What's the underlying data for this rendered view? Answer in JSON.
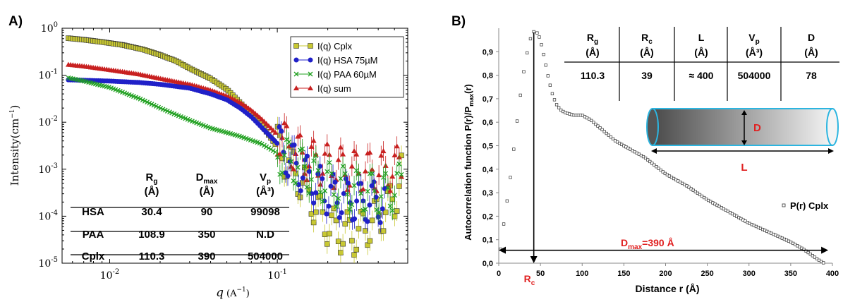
{
  "chart_data": [
    {
      "panel_label": "A)",
      "type": "scatter",
      "xscale": "log",
      "yscale": "log",
      "xlim": [
        0.0052,
        0.6
      ],
      "ylim": [
        1e-05,
        1
      ],
      "xlabel_prefix": "q",
      "xlabel_unit": "(A",
      "xlabel_exp": "−1",
      "xlabel_close": ")",
      "ylabel_main": "Intensity(cm",
      "ylabel_exp": "−1",
      "ylabel_close": ")",
      "x_ticks": [
        {
          "value": 0.01,
          "base": "10",
          "exp": "-2"
        },
        {
          "value": 0.1,
          "base": "10",
          "exp": "-1"
        }
      ],
      "y_ticks": [
        {
          "value": 1,
          "base": "10",
          "exp": "0"
        },
        {
          "value": 0.1,
          "base": "10",
          "exp": "-1"
        },
        {
          "value": 0.01,
          "base": "10",
          "exp": "-2"
        },
        {
          "value": 0.001,
          "base": "10",
          "exp": "-3"
        },
        {
          "value": 0.0001,
          "base": "10",
          "exp": "-4"
        },
        {
          "value": 1e-05,
          "base": "10",
          "exp": "-5"
        }
      ],
      "legend_position": "top-right",
      "series": [
        {
          "name": "I(q) Cplx",
          "color": "#c8c832",
          "marker": "square",
          "points": [
            [
              0.0055,
              0.62
            ],
            [
              0.007,
              0.57
            ],
            [
              0.009,
              0.51
            ],
            [
              0.012,
              0.44
            ],
            [
              0.016,
              0.35
            ],
            [
              0.02,
              0.27
            ],
            [
              0.025,
              0.2
            ],
            [
              0.03,
              0.14
            ],
            [
              0.04,
              0.085
            ],
            [
              0.05,
              0.05
            ],
            [
              0.06,
              0.026
            ],
            [
              0.07,
              0.015
            ],
            [
              0.08,
              0.009
            ],
            [
              0.1,
              0.003
            ],
            [
              0.12,
              0.0012
            ],
            [
              0.15,
              0.0004
            ],
            [
              0.18,
              0.0001
            ],
            [
              0.22,
              5e-05
            ],
            [
              0.3,
              4e-05
            ],
            [
              0.4,
              0.0001
            ],
            [
              0.5,
              0.0002
            ],
            [
              0.55,
              0.001
            ]
          ]
        },
        {
          "name": "I(q) HSA 75µM",
          "color": "#2020c8",
          "marker": "circle",
          "points": [
            [
              0.0055,
              0.08
            ],
            [
              0.007,
              0.078
            ],
            [
              0.01,
              0.075
            ],
            [
              0.015,
              0.07
            ],
            [
              0.02,
              0.064
            ],
            [
              0.03,
              0.053
            ],
            [
              0.04,
              0.04
            ],
            [
              0.05,
              0.03
            ],
            [
              0.06,
              0.02
            ],
            [
              0.07,
              0.013
            ],
            [
              0.08,
              0.008
            ],
            [
              0.1,
              0.0035
            ],
            [
              0.12,
              0.0015
            ],
            [
              0.15,
              0.0007
            ],
            [
              0.2,
              0.0003
            ],
            [
              0.3,
              0.0002
            ],
            [
              0.45,
              0.0002
            ]
          ]
        },
        {
          "name": "I(q) PAA 60µM",
          "color": "#20a020",
          "marker": "x",
          "points": [
            [
              0.0055,
              0.09
            ],
            [
              0.007,
              0.075
            ],
            [
              0.01,
              0.055
            ],
            [
              0.015,
              0.032
            ],
            [
              0.02,
              0.02
            ],
            [
              0.03,
              0.011
            ],
            [
              0.04,
              0.0075
            ],
            [
              0.05,
              0.006
            ],
            [
              0.06,
              0.005
            ],
            [
              0.08,
              0.0035
            ],
            [
              0.1,
              0.0022
            ],
            [
              0.12,
              0.0015
            ],
            [
              0.15,
              0.0009
            ],
            [
              0.2,
              0.0005
            ],
            [
              0.3,
              0.00035
            ],
            [
              0.45,
              0.0003
            ],
            [
              0.55,
              0.0005
            ]
          ]
        },
        {
          "name": "I(q) sum",
          "color": "#c82020",
          "marker": "triangle",
          "points": [
            [
              0.0055,
              0.17
            ],
            [
              0.007,
              0.155
            ],
            [
              0.01,
              0.13
            ],
            [
              0.015,
              0.105
            ],
            [
              0.02,
              0.085
            ],
            [
              0.03,
              0.064
            ],
            [
              0.04,
              0.048
            ],
            [
              0.05,
              0.036
            ],
            [
              0.06,
              0.026
            ],
            [
              0.07,
              0.018
            ],
            [
              0.08,
              0.012
            ],
            [
              0.1,
              0.0055
            ],
            [
              0.12,
              0.0028
            ],
            [
              0.15,
              0.0016
            ],
            [
              0.2,
              0.0012
            ],
            [
              0.3,
              0.0009
            ],
            [
              0.45,
              0.0009
            ],
            [
              0.55,
              0.0012
            ]
          ]
        }
      ],
      "table": {
        "headers": [
          {
            "main": "R",
            "sub": "g",
            "sup": "",
            "unit": "(Å)"
          },
          {
            "main": "D",
            "sub": "max",
            "sup": "",
            "unit": "(Å)"
          },
          {
            "main": "V",
            "sub": "p",
            "sup": "",
            "unit": "(Å³)"
          }
        ],
        "rows": [
          {
            "label": "HSA",
            "values": [
              "30.4",
              "90",
              "99098"
            ]
          },
          {
            "label": "PAA",
            "values": [
              "108.9",
              "350",
              "N.D"
            ]
          },
          {
            "label": "Cplx",
            "values": [
              "110.3",
              "390",
              "504000"
            ]
          }
        ]
      }
    },
    {
      "panel_label": "B)",
      "type": "scatter",
      "xlim": [
        0,
        400
      ],
      "ylim": [
        0,
        1.0
      ],
      "x_ticks": [
        "0",
        "50",
        "100",
        "150",
        "200",
        "250",
        "300",
        "350",
        "400"
      ],
      "y_ticks": [
        "0,0",
        "0,1",
        "0,2",
        "0,3",
        "0,4",
        "0,5",
        "0,6",
        "0,7",
        "0,8",
        "0,9"
      ],
      "xlabel": "Distance r (Å)",
      "ylabel": "Autocorrelation function P(r)/P",
      "ylabel_sub": "max",
      "ylabel_tail": "(r)",
      "legend": "P(r) Cplx",
      "legend_position": "right",
      "series": [
        {
          "name": "P(r) Cplx",
          "marker": "open-square",
          "points": [
            [
              2,
              0.06
            ],
            [
              5,
              0.14
            ],
            [
              8,
              0.22
            ],
            [
              12,
              0.31
            ],
            [
              16,
              0.42
            ],
            [
              20,
              0.55
            ],
            [
              24,
              0.66
            ],
            [
              28,
              0.77
            ],
            [
              32,
              0.86
            ],
            [
              36,
              0.93
            ],
            [
              40,
              0.98
            ],
            [
              44,
              0.99
            ],
            [
              48,
              0.97
            ],
            [
              52,
              0.92
            ],
            [
              56,
              0.85
            ],
            [
              60,
              0.78
            ],
            [
              65,
              0.71
            ],
            [
              70,
              0.67
            ],
            [
              75,
              0.65
            ],
            [
              80,
              0.64
            ],
            [
              90,
              0.63
            ],
            [
              100,
              0.63
            ],
            [
              110,
              0.61
            ],
            [
              120,
              0.58
            ],
            [
              130,
              0.55
            ],
            [
              140,
              0.52
            ],
            [
              150,
              0.5
            ],
            [
              175,
              0.45
            ],
            [
              200,
              0.38
            ],
            [
              225,
              0.33
            ],
            [
              250,
              0.27
            ],
            [
              275,
              0.22
            ],
            [
              300,
              0.17
            ],
            [
              325,
              0.13
            ],
            [
              350,
              0.09
            ],
            [
              365,
              0.06
            ],
            [
              375,
              0.035
            ],
            [
              385,
              0.01
            ],
            [
              390,
              0.0
            ]
          ]
        }
      ],
      "annotations": {
        "dmax_text": "D",
        "dmax_sub": "max",
        "dmax_value": "=390 Å",
        "rc_text": "R",
        "rc_sub": "c",
        "cyl_d": "D",
        "cyl_l": "L",
        "rc_r": 42,
        "dmax_y": 0.055,
        "dmax_from": 0,
        "dmax_to": 395
      },
      "table": {
        "headers": [
          {
            "main": "R",
            "sub": "g",
            "sup": "",
            "unit": "(Å)"
          },
          {
            "main": "R",
            "sub": "c",
            "sup": "",
            "unit": "(Å)"
          },
          {
            "main": "L",
            "sub": "",
            "sup": "",
            "unit": "(Å)"
          },
          {
            "main": "V",
            "sub": "p",
            "sup": "",
            "unit": "(Å³)"
          },
          {
            "main": "D",
            "sub": "",
            "sup": "",
            "unit": "(Å)"
          }
        ],
        "values": [
          "110.3",
          "39",
          "≈ 400",
          "504000",
          "78"
        ]
      }
    }
  ]
}
